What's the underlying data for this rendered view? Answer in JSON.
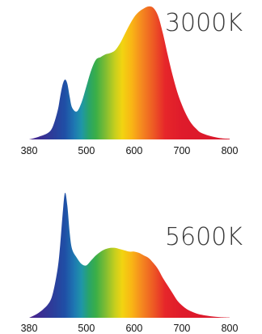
{
  "chart_data": [
    {
      "type": "area",
      "title": "3000K",
      "xlabel": "",
      "ylabel": "",
      "xlim": [
        380,
        800
      ],
      "ylim": [
        0,
        1
      ],
      "xticks": [
        "380",
        "500",
        "600",
        "700",
        "800"
      ],
      "grid": false,
      "fill": "visible spectrum gradient",
      "x": [
        380,
        400,
        420,
        430,
        440,
        445,
        450,
        455,
        460,
        465,
        470,
        480,
        490,
        500,
        510,
        520,
        530,
        540,
        550,
        560,
        570,
        580,
        590,
        600,
        610,
        620,
        630,
        640,
        650,
        660,
        670,
        680,
        690,
        700,
        710,
        720,
        730,
        740,
        760,
        780,
        800
      ],
      "values": [
        0.0,
        0.02,
        0.05,
        0.1,
        0.22,
        0.32,
        0.41,
        0.45,
        0.42,
        0.32,
        0.24,
        0.21,
        0.28,
        0.4,
        0.52,
        0.6,
        0.62,
        0.64,
        0.65,
        0.67,
        0.72,
        0.79,
        0.86,
        0.92,
        0.96,
        0.985,
        1.0,
        0.99,
        0.93,
        0.8,
        0.64,
        0.49,
        0.36,
        0.26,
        0.18,
        0.12,
        0.08,
        0.05,
        0.025,
        0.01,
        0.005
      ]
    },
    {
      "type": "area",
      "title": "5600K",
      "xlabel": "",
      "ylabel": "",
      "xlim": [
        380,
        800
      ],
      "ylim": [
        0,
        1
      ],
      "xticks": [
        "380",
        "500",
        "600",
        "700",
        "800"
      ],
      "grid": false,
      "fill": "visible spectrum gradient",
      "x": [
        380,
        400,
        420,
        430,
        440,
        445,
        450,
        455,
        460,
        465,
        470,
        480,
        490,
        500,
        510,
        520,
        530,
        540,
        550,
        560,
        570,
        580,
        590,
        600,
        610,
        620,
        630,
        640,
        650,
        660,
        670,
        680,
        690,
        700,
        710,
        720,
        730,
        740,
        760,
        780,
        800
      ],
      "values": [
        0.0,
        0.04,
        0.11,
        0.2,
        0.4,
        0.58,
        0.82,
        1.0,
        0.9,
        0.68,
        0.55,
        0.48,
        0.43,
        0.42,
        0.46,
        0.5,
        0.53,
        0.55,
        0.56,
        0.56,
        0.55,
        0.54,
        0.53,
        0.53,
        0.52,
        0.5,
        0.48,
        0.44,
        0.39,
        0.32,
        0.26,
        0.2,
        0.14,
        0.1,
        0.07,
        0.05,
        0.035,
        0.025,
        0.012,
        0.005,
        0.002
      ]
    }
  ]
}
